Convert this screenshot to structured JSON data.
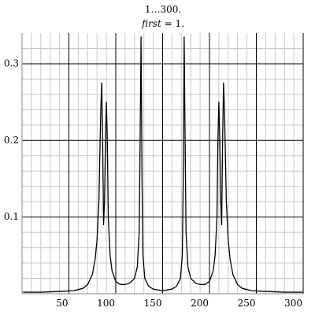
{
  "chart_data": {
    "type": "line",
    "title": "1…300.",
    "subtitle": {
      "variable": "first",
      "rest": " = 1."
    },
    "x": [
      1,
      20,
      40,
      55,
      65,
      70,
      75,
      78,
      80,
      82,
      83,
      84,
      85,
      86,
      87,
      88,
      89,
      90,
      91,
      92,
      94,
      96,
      100,
      105,
      110,
      115,
      120,
      123,
      125,
      126,
      127,
      128,
      129,
      131,
      135,
      140,
      150,
      160,
      165,
      169,
      171,
      172,
      173,
      174,
      175,
      177,
      180,
      185,
      190,
      195,
      200,
      204,
      206,
      208,
      209,
      210,
      211,
      212,
      213,
      214,
      215,
      216,
      217,
      218,
      220,
      222,
      225,
      230,
      235,
      245,
      260,
      280,
      300
    ],
    "series": [
      {
        "color": "#000000",
        "values": [
          0.002,
          0.002,
          0.003,
          0.004,
          0.007,
          0.012,
          0.025,
          0.045,
          0.07,
          0.12,
          0.18,
          0.24,
          0.275,
          0.2,
          0.09,
          0.12,
          0.2,
          0.25,
          0.2,
          0.1,
          0.05,
          0.03,
          0.016,
          0.012,
          0.012,
          0.014,
          0.02,
          0.035,
          0.08,
          0.2,
          0.335,
          0.15,
          0.05,
          0.02,
          0.01,
          0.006,
          0.004,
          0.006,
          0.01,
          0.02,
          0.05,
          0.15,
          0.335,
          0.2,
          0.08,
          0.035,
          0.02,
          0.014,
          0.012,
          0.012,
          0.016,
          0.03,
          0.05,
          0.1,
          0.2,
          0.25,
          0.2,
          0.12,
          0.09,
          0.2,
          0.275,
          0.24,
          0.18,
          0.12,
          0.07,
          0.045,
          0.025,
          0.012,
          0.007,
          0.004,
          0.003,
          0.002,
          0.002
        ]
      }
    ],
    "xlim": [
      0,
      300
    ],
    "ylim": [
      0,
      0.34
    ],
    "xticks": [
      50,
      100,
      150,
      200,
      250,
      300
    ],
    "yticks": [
      0.1,
      0.2,
      0.3
    ],
    "minor_xticks": [
      10,
      20,
      30,
      40,
      60,
      70,
      80,
      90,
      110,
      120,
      130,
      140,
      160,
      170,
      180,
      190,
      210,
      220,
      230,
      240,
      260,
      270,
      280,
      290
    ],
    "minor_yticks": [
      0.02,
      0.04,
      0.06,
      0.08,
      0.12,
      0.14,
      0.16,
      0.18,
      0.22,
      0.24,
      0.26,
      0.28,
      0.32
    ],
    "grid": true
  }
}
